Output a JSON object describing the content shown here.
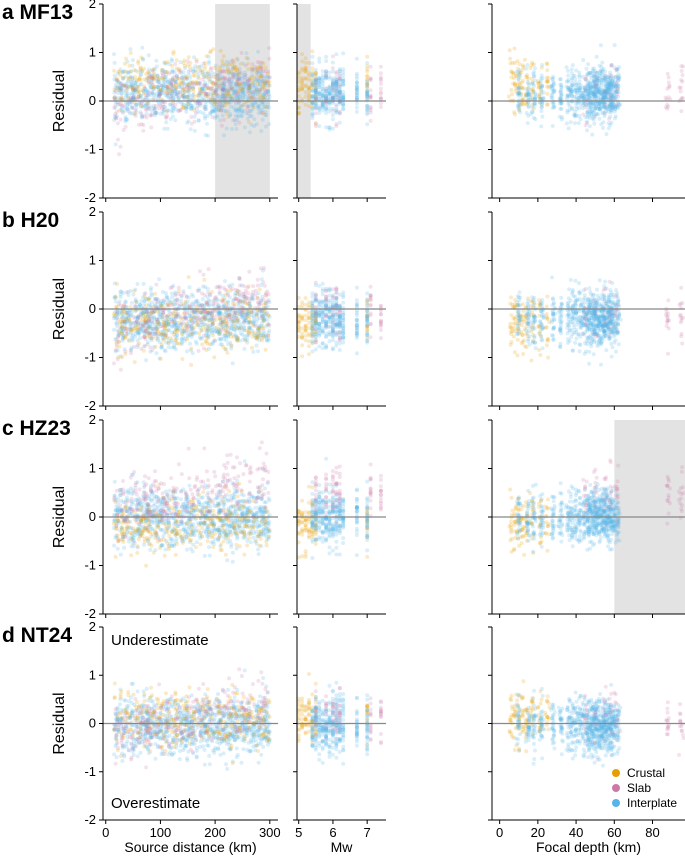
{
  "chart_data": {
    "type": "scatter",
    "ylabel": "Residual",
    "ylim": [
      -2,
      2
    ],
    "yticks": [
      "2",
      "1",
      "0",
      "-1",
      "-2"
    ],
    "columns": [
      {
        "xlabel": "Source distance (km)",
        "xlim": [
          -5,
          315
        ],
        "xticks": [
          0,
          100,
          200,
          300
        ],
        "xticklabels": [
          "0",
          "100",
          "200",
          "300"
        ]
      },
      {
        "xlabel": "Mw",
        "xlim": [
          4.95,
          7.55
        ],
        "xticks": [
          5,
          6,
          7
        ],
        "xticklabels": [
          "5",
          "6",
          "7"
        ]
      },
      {
        "xlabel": "Focal depth (km)",
        "xlim": [
          -4,
          97
        ],
        "xticks": [
          0,
          20,
          40,
          60,
          80
        ],
        "xticklabels": [
          "0",
          "20",
          "40",
          "60",
          "80"
        ]
      }
    ],
    "models": [
      {
        "label": "a",
        "name": "MF13",
        "shaded": [
          {
            "col": 0,
            "from": 200,
            "to": 300
          },
          {
            "col": 1,
            "from": 4.95,
            "to": 5.35
          }
        ]
      },
      {
        "label": "b",
        "name": "H20",
        "shaded": []
      },
      {
        "label": "c",
        "name": "HZ23",
        "shaded": [
          {
            "col": 2,
            "from": 60,
            "to": 97
          }
        ]
      },
      {
        "label": "d",
        "name": "NT24",
        "shaded": []
      }
    ],
    "series": [
      {
        "name": "Crustal",
        "color": "#E69F00"
      },
      {
        "name": "Slab",
        "color": "#CC79A7"
      },
      {
        "name": "Interplate",
        "color": "#56B4E9"
      }
    ],
    "event_mw": [
      {
        "type": "crustal",
        "values": [
          5.0,
          5.1,
          5.2,
          5.3,
          5.4,
          5.5,
          7.0
        ]
      },
      {
        "type": "slab",
        "values": [
          5.5,
          5.8,
          6.0,
          6.1,
          6.2,
          7.1,
          7.4
        ]
      },
      {
        "type": "interplate",
        "values": [
          5.4,
          5.5,
          5.6,
          5.7,
          5.8,
          5.9,
          6.0,
          6.1,
          6.2,
          6.3,
          6.7,
          7.0
        ]
      }
    ],
    "event_depth_km": [
      {
        "type": "crustal",
        "values": [
          6,
          8,
          10,
          12,
          14,
          17,
          21,
          25
        ]
      },
      {
        "type": "slab",
        "values": [
          45,
          50,
          55,
          58,
          61,
          88,
          95
        ]
      },
      {
        "type": "interplate",
        "values": [
          10,
          15,
          18,
          22,
          28,
          32,
          36,
          38,
          40,
          42,
          44,
          46,
          47,
          48,
          49,
          50,
          51,
          52,
          53,
          54,
          55,
          56,
          57,
          58,
          59,
          60,
          62
        ]
      }
    ],
    "mean_residual": {
      "MF13": {
        "crustal": 0.35,
        "slab": 0.15,
        "interplate": 0.15
      },
      "H20": {
        "crustal": -0.3,
        "slab": -0.1,
        "interplate": -0.2
      },
      "HZ23": {
        "crustal": -0.15,
        "slab": 0.45,
        "interplate": 0.0
      },
      "NT24": {
        "crustal": 0.1,
        "slab": 0.1,
        "interplate": -0.05
      }
    },
    "annotations": {
      "top": "Underestimate",
      "bottom": "Overestimate"
    }
  }
}
